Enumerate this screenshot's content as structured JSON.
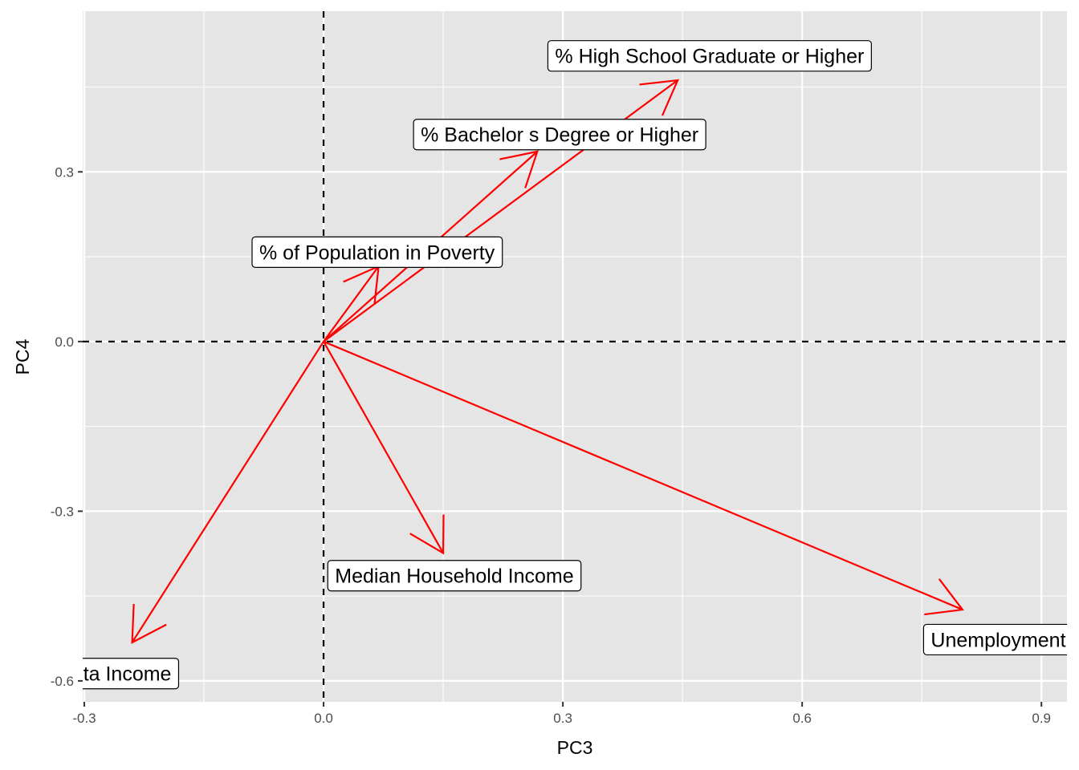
{
  "chart_data": {
    "type": "scatter",
    "subtype": "biplot-loading-arrows",
    "xlabel": "PC3",
    "ylabel": "PC4",
    "xlim": [
      -0.302,
      0.932
    ],
    "ylim": [
      -0.637,
      0.584
    ],
    "x_ticks": [
      -0.3,
      0.0,
      0.3,
      0.6,
      0.9
    ],
    "x_tick_labels": [
      "-0.3",
      "0.0",
      "0.3",
      "0.6",
      "0.9"
    ],
    "y_ticks": [
      -0.6,
      -0.3,
      0.0,
      0.3
    ],
    "y_tick_labels": [
      "-0.6",
      "-0.3",
      "0.0",
      "0.3"
    ],
    "grid": true,
    "reference_lines": [
      {
        "axis": "x",
        "value": 0,
        "style": "dashed"
      },
      {
        "axis": "y",
        "value": 0,
        "style": "dashed"
      }
    ],
    "arrow_color": "#ff0000",
    "panel_background": "#e5e5e5",
    "series": [
      {
        "name": "% High School Graduate or Higher",
        "x": 0.444,
        "y": 0.462,
        "label_x": 0.484,
        "label_y": 0.505
      },
      {
        "name": "% Bachelor s Degree or Higher",
        "x": 0.268,
        "y": 0.336,
        "label_x": 0.296,
        "label_y": 0.366
      },
      {
        "name": "% of Population in Poverty",
        "x": 0.069,
        "y": 0.133,
        "label_x": 0.067,
        "label_y": 0.158
      },
      {
        "name": "Median Household Income",
        "x": 0.15,
        "y": -0.374,
        "label_x": 0.164,
        "label_y": -0.414
      },
      {
        "name": "Unemployment Rate",
        "x": 0.801,
        "y": -0.474,
        "label_x": 0.876,
        "label_y": -0.527
      },
      {
        "name": "Per Capita Income",
        "x": -0.24,
        "y": -0.532,
        "label_x": -0.295,
        "label_y": -0.587
      }
    ]
  }
}
